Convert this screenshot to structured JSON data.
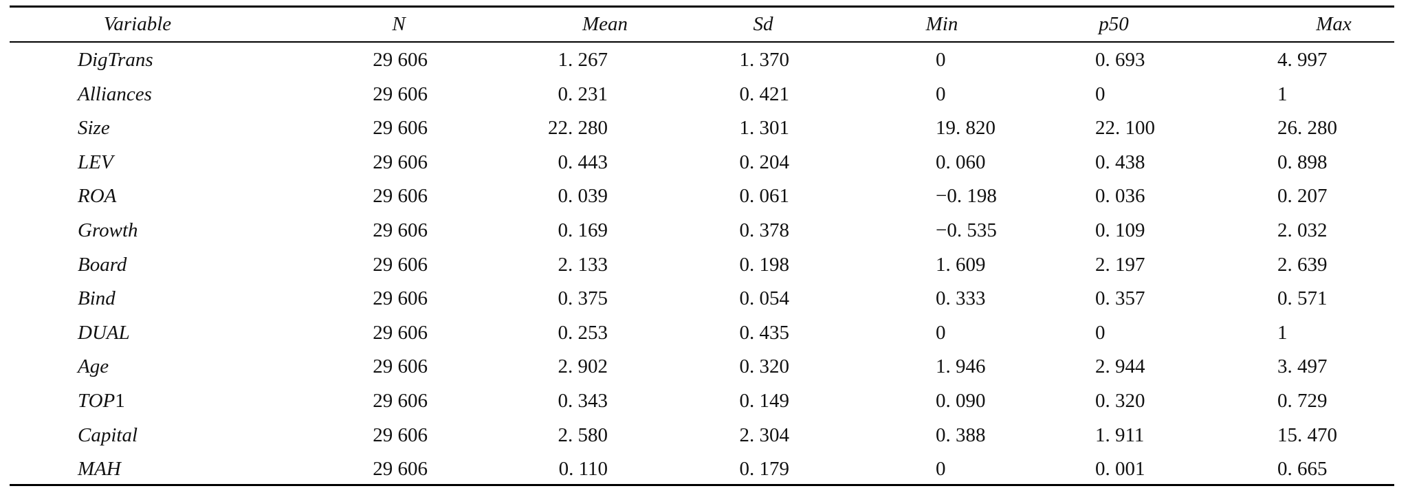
{
  "table": {
    "headers": [
      "Variable",
      "N",
      "Mean",
      "Sd",
      "Min",
      "p50",
      "Max"
    ],
    "rows": [
      [
        "DigTrans",
        "29 606",
        "1. 267",
        "1. 370",
        "0",
        "0. 693",
        "4. 997"
      ],
      [
        "Alliances",
        "29 606",
        "0. 231",
        "0. 421",
        "0",
        "0",
        "1"
      ],
      [
        "Size",
        "29 606",
        "22. 280",
        "1. 301",
        "19. 820",
        "22. 100",
        "26. 280"
      ],
      [
        "LEV",
        "29 606",
        "0. 443",
        "0. 204",
        "0. 060",
        "0. 438",
        "0. 898"
      ],
      [
        "ROA",
        "29 606",
        "0. 039",
        "0. 061",
        "−0. 198",
        "0. 036",
        "0. 207"
      ],
      [
        "Growth",
        "29 606",
        "0. 169",
        "0. 378",
        "−0. 535",
        "0. 109",
        "2. 032"
      ],
      [
        "Board",
        "29 606",
        "2. 133",
        "0. 198",
        "1. 609",
        "2. 197",
        "2. 639"
      ],
      [
        "Bind",
        "29 606",
        "0. 375",
        "0. 054",
        "0. 333",
        "0. 357",
        "0. 571"
      ],
      [
        "DUAL",
        "29 606",
        "0. 253",
        "0. 435",
        "0",
        "0",
        "1"
      ],
      [
        "Age",
        "29 606",
        "2. 902",
        "0. 320",
        "1. 946",
        "2. 944",
        "3. 497"
      ],
      [
        "TOP1",
        "29 606",
        "0. 343",
        "0. 149",
        "0. 090",
        "0. 320",
        "0. 729"
      ],
      [
        "Capital",
        "29 606",
        "2. 580",
        "2. 304",
        "0. 388",
        "1. 911",
        "15. 470"
      ],
      [
        "MAH",
        "29 606",
        "0. 110",
        "0. 179",
        "0",
        "0. 001",
        "0. 665"
      ]
    ]
  }
}
